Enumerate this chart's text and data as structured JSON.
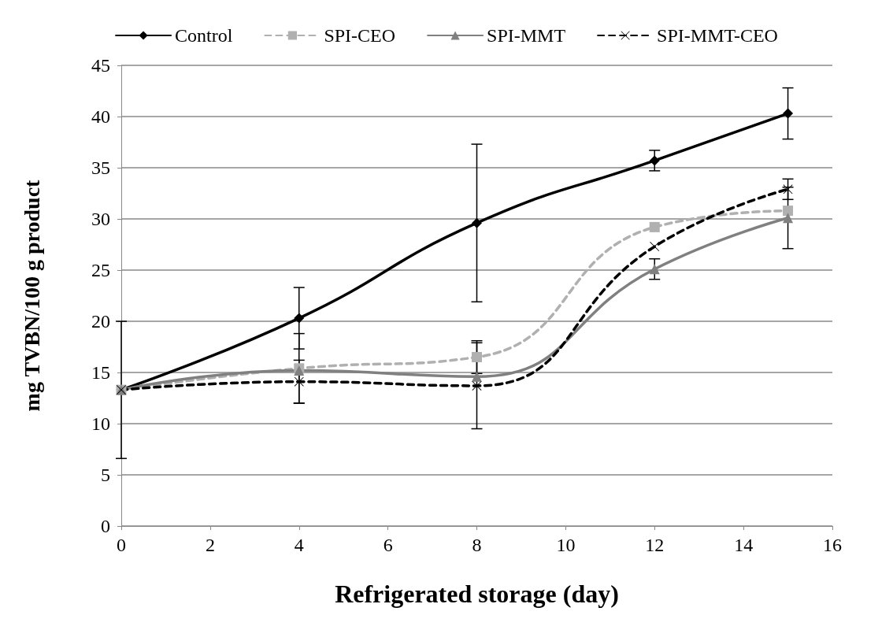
{
  "chart_data": {
    "type": "line",
    "xlabel": "Refrigerated storage (day)",
    "ylabel": "mg TVBN/100 g product",
    "x": [
      0,
      4,
      8,
      12,
      15
    ],
    "series": [
      {
        "name": "Control",
        "color": "#000000",
        "marker": "diamond",
        "line_style": "solid",
        "values": [
          13.3,
          20.3,
          29.6,
          35.7,
          40.3
        ],
        "errors": [
          6.7,
          3,
          7.7,
          1,
          2.5
        ]
      },
      {
        "name": "SPI-CEO",
        "color": "#b0b0b0",
        "marker": "square",
        "line_style": "dashed",
        "values": [
          13.3,
          15.4,
          16.5,
          29.2,
          30.8
        ],
        "errors": [
          null,
          3.4,
          1.6,
          null,
          null
        ]
      },
      {
        "name": "SPI-MMT",
        "color": "#808080",
        "marker": "triangle",
        "line_style": "solid",
        "values": [
          13.3,
          15.2,
          14.6,
          25.1,
          30.1
        ],
        "errors": [
          null,
          null,
          null,
          1,
          3
        ]
      },
      {
        "name": "SPI-MMT-CEO",
        "color": "#000000",
        "marker": "cross",
        "line_style": "dashed",
        "values": [
          13.3,
          14.1,
          13.7,
          27.3,
          32.9
        ],
        "errors": [
          null,
          2.1,
          4.2,
          null,
          1
        ]
      }
    ],
    "xlim": [
      0,
      16
    ],
    "xticks": [
      0,
      2,
      4,
      6,
      8,
      10,
      12,
      14,
      16
    ],
    "ylim": [
      0,
      45
    ],
    "yticks": [
      0,
      5,
      10,
      15,
      20,
      25,
      30,
      35,
      40,
      45
    ],
    "grid": "y",
    "legend": "top"
  }
}
